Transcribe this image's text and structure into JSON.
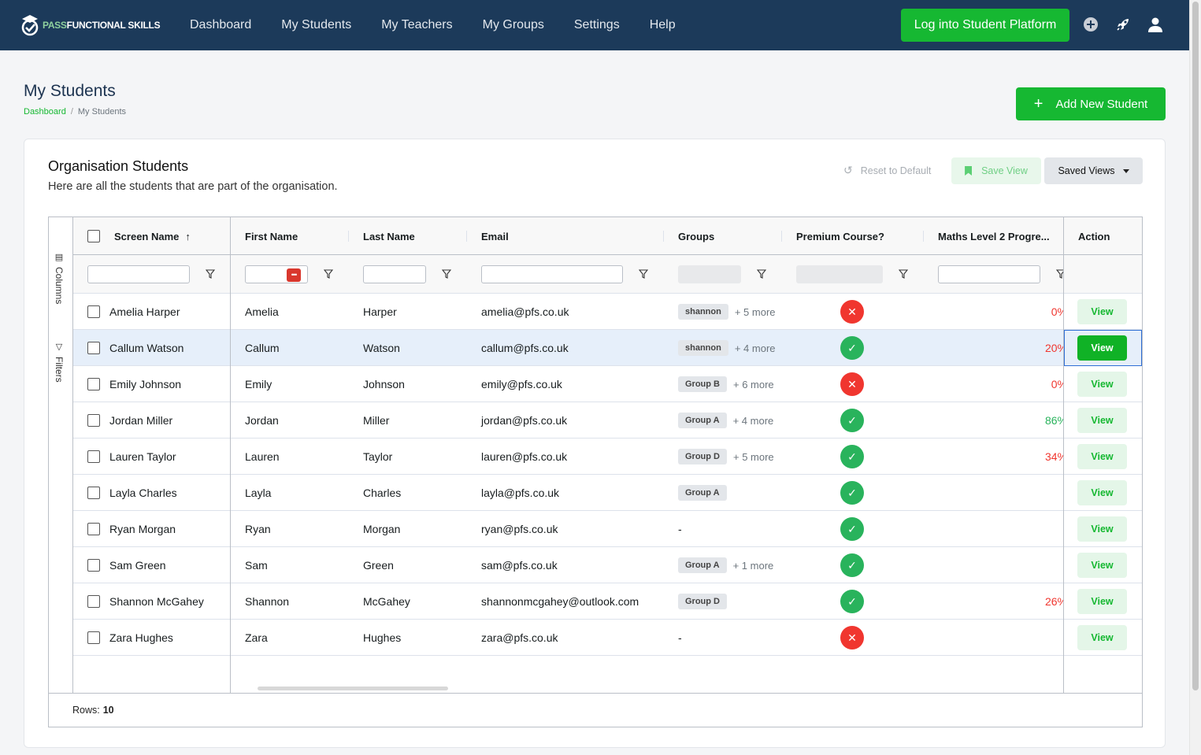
{
  "nav": {
    "logo_pass": "PASS",
    "logo_rest": "FUNCTIONAL SKILLS",
    "links": [
      "Dashboard",
      "My Students",
      "My Teachers",
      "My Groups",
      "Settings",
      "Help"
    ],
    "login_button": "Log into Student Platform"
  },
  "page": {
    "title": "My Students",
    "breadcrumb": [
      "Dashboard",
      "My Students"
    ],
    "add_button": "Add New Student"
  },
  "card": {
    "title": "Organisation Students",
    "subtitle": "Here are all the students that are part of the organisation.",
    "reset_label": "Reset to Default",
    "save_view_label": "Save View",
    "saved_views_label": "Saved Views"
  },
  "grid": {
    "side_tabs": [
      "Columns",
      "Filters"
    ],
    "columns": [
      "Screen Name",
      "First Name",
      "Last Name",
      "Email",
      "Groups",
      "Premium Course?",
      "Maths Level 2 Progre...",
      "Action"
    ],
    "view_label": "View",
    "rows": [
      {
        "screen": "Amelia Harper",
        "first": "Amelia",
        "last": "Harper",
        "email": "amelia@pfs.co.uk",
        "group": "shannon",
        "more": "+ 5 more",
        "premium": false,
        "progress": "0%",
        "progress_color": "#f0362f"
      },
      {
        "screen": "Callum Watson",
        "first": "Callum",
        "last": "Watson",
        "email": "callum@pfs.co.uk",
        "group": "shannon",
        "more": "+ 4 more",
        "premium": true,
        "progress": "20%",
        "progress_color": "#f0362f"
      },
      {
        "screen": "Emily Johnson",
        "first": "Emily",
        "last": "Johnson",
        "email": "emily@pfs.co.uk",
        "group": "Group B",
        "more": "+ 6 more",
        "premium": false,
        "progress": "0%",
        "progress_color": "#f0362f"
      },
      {
        "screen": "Jordan Miller",
        "first": "Jordan",
        "last": "Miller",
        "email": "jordan@pfs.co.uk",
        "group": "Group A",
        "more": "+ 4 more",
        "premium": true,
        "progress": "86%",
        "progress_color": "#29b35c"
      },
      {
        "screen": "Lauren Taylor",
        "first": "Lauren",
        "last": "Taylor",
        "email": "lauren@pfs.co.uk",
        "group": "Group D",
        "more": "+ 5 more",
        "premium": true,
        "progress": "34%",
        "progress_color": "#f0362f"
      },
      {
        "screen": "Layla Charles",
        "first": "Layla",
        "last": "Charles",
        "email": "layla@pfs.co.uk",
        "group": "Group A",
        "more": "",
        "premium": true,
        "progress": "-",
        "progress_color": "#6c757d"
      },
      {
        "screen": "Ryan Morgan",
        "first": "Ryan",
        "last": "Morgan",
        "email": "ryan@pfs.co.uk",
        "group": "",
        "more": "",
        "premium": true,
        "progress": "-",
        "progress_color": "#6c757d"
      },
      {
        "screen": "Sam Green",
        "first": "Sam",
        "last": "Green",
        "email": "sam@pfs.co.uk",
        "group": "Group A",
        "more": "+ 1 more",
        "premium": true,
        "progress": "-",
        "progress_color": "#6c757d"
      },
      {
        "screen": "Shannon McGahey",
        "first": "Shannon",
        "last": "McGahey",
        "email": "shannonmcgahey@outlook.com",
        "group": "Group D",
        "more": "",
        "premium": true,
        "progress": "26%",
        "progress_color": "#f0362f"
      },
      {
        "screen": "Zara Hughes",
        "first": "Zara",
        "last": "Hughes",
        "email": "zara@pfs.co.uk",
        "group": "",
        "more": "",
        "premium": false,
        "progress": "-",
        "progress_color": "#6c757d"
      }
    ],
    "footer_label": "Rows:",
    "footer_count": "10",
    "empty_group_text": "-"
  },
  "colors": {
    "brand_green": "#16b832",
    "navbar": "#1c3a5a"
  }
}
